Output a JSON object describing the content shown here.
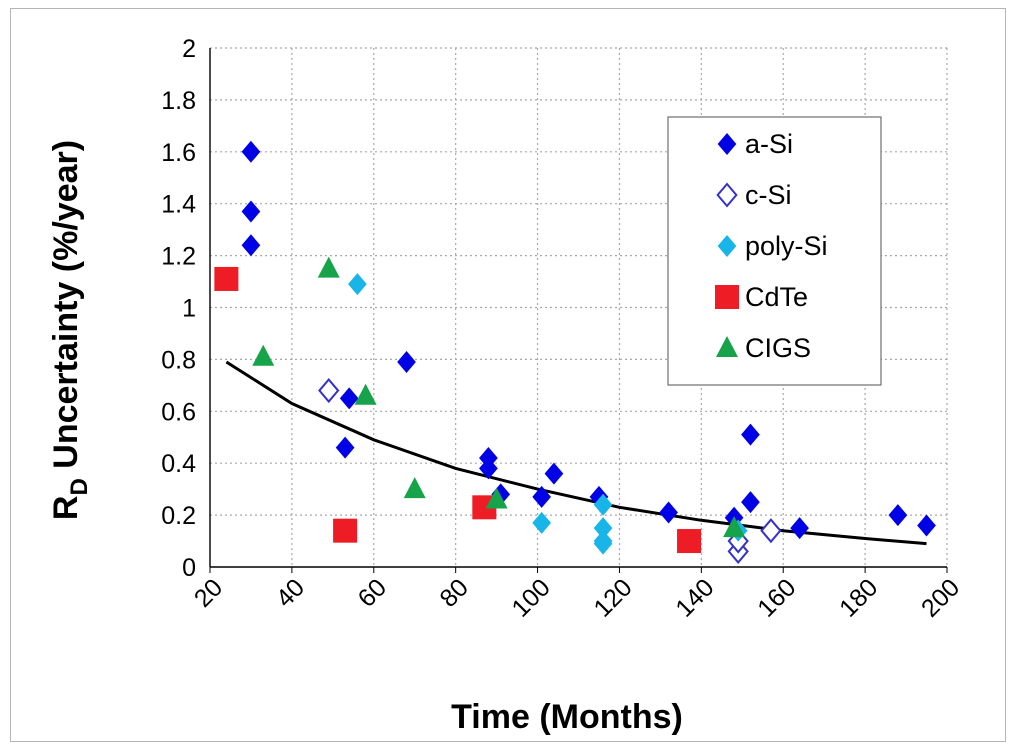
{
  "chart_data": {
    "type": "scatter",
    "title": "",
    "xlabel": "Time (Months)",
    "ylabel_main": "R",
    "ylabel_sub": "D",
    "ylabel_rest": " Uncertainty (%/year)",
    "xlim": [
      20,
      200
    ],
    "ylim": [
      0,
      2
    ],
    "x_ticks": [
      20,
      40,
      60,
      80,
      100,
      120,
      140,
      160,
      180,
      200
    ],
    "y_ticks": [
      {
        "v": 0,
        "label": "0"
      },
      {
        "v": 0.2,
        "label": "0.2"
      },
      {
        "v": 0.4,
        "label": "0.4"
      },
      {
        "v": 0.6,
        "label": "0.6"
      },
      {
        "v": 0.8,
        "label": "0.8"
      },
      {
        "v": 1,
        "label": "1"
      },
      {
        "v": 1.2,
        "label": "1.2"
      },
      {
        "v": 1.4,
        "label": "1.4"
      },
      {
        "v": 1.6,
        "label": "1.6"
      },
      {
        "v": 1.8,
        "label": "1.8"
      },
      {
        "v": 2,
        "label": "2"
      }
    ],
    "grid": "dotted",
    "legend_position": "top-right",
    "series": [
      {
        "name": "a-Si",
        "marker": "diamond-filled",
        "color": "#0000e6",
        "points": [
          [
            30,
            1.6
          ],
          [
            30,
            1.37
          ],
          [
            30,
            1.24
          ],
          [
            54,
            0.65
          ],
          [
            53,
            0.46
          ],
          [
            68,
            0.79
          ],
          [
            88,
            0.42
          ],
          [
            88,
            0.38
          ],
          [
            91,
            0.28
          ],
          [
            101,
            0.27
          ],
          [
            104,
            0.36
          ],
          [
            115,
            0.27
          ],
          [
            132,
            0.21
          ],
          [
            148,
            0.19
          ],
          [
            152,
            0.51
          ],
          [
            152,
            0.25
          ],
          [
            164,
            0.15
          ],
          [
            188,
            0.2
          ],
          [
            195,
            0.16
          ]
        ]
      },
      {
        "name": "c-Si",
        "marker": "diamond-open",
        "color": "#3333cc",
        "points": [
          [
            49,
            0.68
          ],
          [
            149,
            0.06
          ],
          [
            149,
            0.1
          ],
          [
            157,
            0.14
          ]
        ]
      },
      {
        "name": "poly-Si",
        "marker": "diamond-filled",
        "color": "#19b5e8",
        "points": [
          [
            56,
            1.09
          ],
          [
            101,
            0.17
          ],
          [
            116,
            0.24
          ],
          [
            116,
            0.15
          ],
          [
            116,
            0.1
          ],
          [
            116,
            0.09
          ],
          [
            149,
            0.14
          ]
        ]
      },
      {
        "name": "CdTe",
        "marker": "square",
        "color": "#ee1c24",
        "points": [
          [
            24,
            1.11
          ],
          [
            53,
            0.14
          ],
          [
            87,
            0.23
          ],
          [
            137,
            0.1
          ]
        ]
      },
      {
        "name": "CIGS",
        "marker": "triangle",
        "color": "#16a34a",
        "points": [
          [
            33,
            0.81
          ],
          [
            49,
            1.15
          ],
          [
            58,
            0.66
          ],
          [
            70,
            0.3
          ],
          [
            90,
            0.26
          ],
          [
            148,
            0.15
          ]
        ]
      }
    ],
    "trendline": {
      "color": "#000000",
      "points": [
        [
          24,
          0.79
        ],
        [
          40,
          0.63
        ],
        [
          60,
          0.49
        ],
        [
          80,
          0.38
        ],
        [
          100,
          0.3
        ],
        [
          120,
          0.23
        ],
        [
          140,
          0.18
        ],
        [
          160,
          0.14
        ],
        [
          180,
          0.11
        ],
        [
          195,
          0.09
        ]
      ]
    }
  }
}
